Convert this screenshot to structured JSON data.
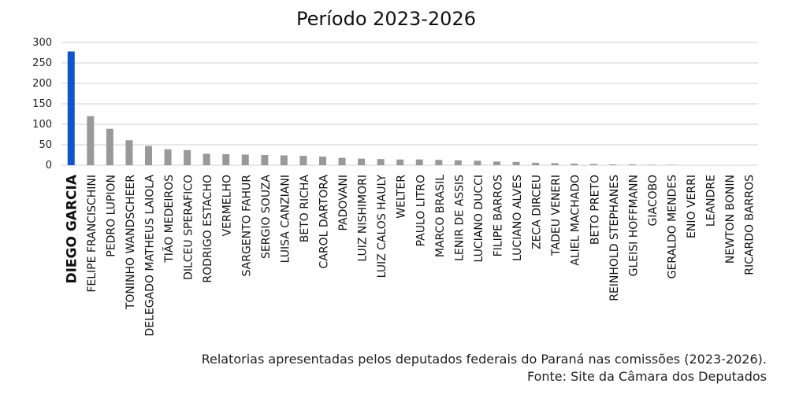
{
  "chart_data": {
    "type": "bar",
    "title": "Período 2023-2026",
    "ylim": [
      0,
      300
    ],
    "yticks": [
      "0",
      "50",
      "100",
      "150",
      "200",
      "250",
      "300"
    ],
    "grid": true,
    "legend": "none",
    "highlight_color": "#1155cc",
    "bar_color": "#999999",
    "categories": [
      "DIEGO GARCIA",
      "FELIPE FRANCISCHINI",
      "PEDRO LUPION",
      "TONINHO WANDSCHEER",
      "DELEGADO MATHEUS LAIOLA",
      "TIÃO MEDEIROS",
      "DILCEU SPERAFICO",
      "RODRIGO ESTACHO",
      "VERMELHO",
      "SARGENTO FAHUR",
      "SERGIO SOUZA",
      "LUISA CANZIANI",
      "BETO RICHA",
      "CAROL DARTORA",
      "PADOVANI",
      "LUIZ NISHIMORI",
      "LUIZ CALOS HAULY",
      "WELTER",
      "PAULO LITRO",
      "MARCO BRASIL",
      "LENIR DE ASSIS",
      "LUCIANO DUCCI",
      "FILIPE BARROS",
      "LUCIANO ALVES",
      "ZECA DIRCEU",
      "TADEU VENERI",
      "ALIEL MACHADO",
      "BETO PRETO",
      "REINHOLD STEPHANES",
      "GLEISI HOFFMANN",
      "GIACOBO",
      "GERALDO MENDES",
      "ENIO VERRI",
      "LEANDRE",
      "NEWTON BONIN",
      "RICARDO BARROS"
    ],
    "values": [
      278,
      120,
      89,
      61,
      47,
      39,
      37,
      28,
      27,
      26,
      25,
      24,
      23,
      21,
      18,
      16,
      15,
      14,
      14,
      13,
      12,
      11,
      9,
      8,
      6,
      5,
      4,
      3,
      2,
      2,
      1,
      1,
      0,
      0,
      0,
      0
    ]
  },
  "caption": {
    "line1": "Relatorias apresentadas pelos deputados federais do Paraná nas comissões (2023-2026).",
    "line2": "Fonte: Site da Câmara dos Deputados"
  }
}
